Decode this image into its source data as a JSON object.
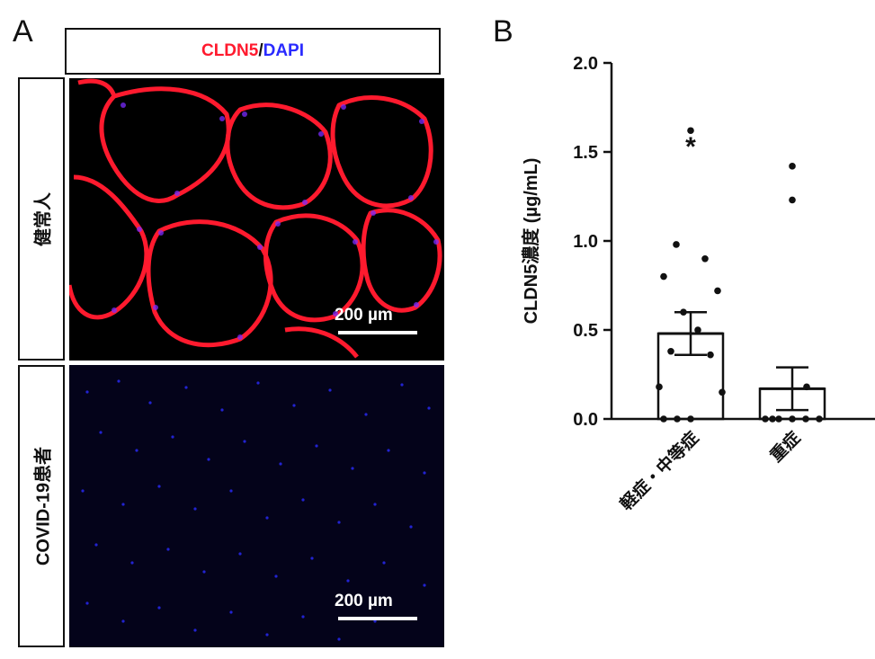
{
  "panel_a": {
    "letter": "A",
    "stain_red": "CLDN5",
    "stain_sep": "/",
    "stain_blue": "DAPI",
    "rows": [
      {
        "label": "健常人",
        "scale_label": "200 µm"
      },
      {
        "label": "COVID-19患者",
        "scale_label": "200 µm"
      }
    ]
  },
  "panel_b": {
    "letter": "B"
  },
  "colors": {
    "red_stain": "#ff1a2e",
    "blue_stain": "#2a2bff"
  },
  "chart_data": {
    "type": "bar",
    "title": "",
    "ylabel": "CLDN5濃度 (µg/mL)",
    "xlabel": "",
    "ylim": [
      0,
      2.0
    ],
    "yticks": [
      "0.0",
      "0.5",
      "1.0",
      "1.5",
      "2.0"
    ],
    "categories": [
      "軽症・中等症",
      "重症"
    ],
    "values": [
      0.48,
      0.17
    ],
    "sem": [
      0.12,
      0.12
    ],
    "points": [
      [
        1.62,
        0.98,
        0.9,
        0.8,
        0.72,
        0.6,
        0.5,
        0.38,
        0.36,
        0.18,
        0.15,
        0.0,
        0.0,
        0.0
      ],
      [
        1.42,
        1.23,
        0.18,
        0.0,
        0.0,
        0.0,
        0.0,
        0.0,
        0.0
      ]
    ],
    "annotations": [
      "*",
      ""
    ]
  }
}
